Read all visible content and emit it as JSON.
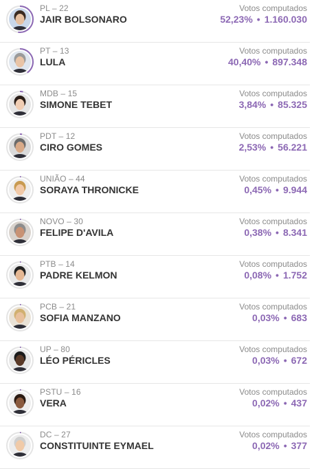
{
  "vote_label": "Votos computados",
  "separator": "•",
  "colors": {
    "accent": "#8c68b4",
    "progress_ring": "#8c68b4",
    "ring_track": "#e4e4e4"
  },
  "candidates": [
    {
      "party": "PL – 22",
      "name": "JAIR BOLSONARO",
      "percent": "52,23%",
      "votes": "1.160.030",
      "share": 0.5223,
      "avatar": "person-photo-icon"
    },
    {
      "party": "PT – 13",
      "name": "LULA",
      "percent": "40,40%",
      "votes": "897.348",
      "share": 0.404,
      "avatar": "person-photo-icon"
    },
    {
      "party": "MDB – 15",
      "name": "SIMONE TEBET",
      "percent": "3,84%",
      "votes": "85.325",
      "share": 0.0384,
      "avatar": "person-photo-icon"
    },
    {
      "party": "PDT – 12",
      "name": "CIRO GOMES",
      "percent": "2,53%",
      "votes": "56.221",
      "share": 0.0253,
      "avatar": "person-photo-icon"
    },
    {
      "party": "UNIÃO – 44",
      "name": "SORAYA THRONICKE",
      "percent": "0,45%",
      "votes": "9.944",
      "share": 0.0045,
      "avatar": "person-photo-icon"
    },
    {
      "party": "NOVO – 30",
      "name": "FELIPE D'AVILA",
      "percent": "0,38%",
      "votes": "8.341",
      "share": 0.0038,
      "avatar": "person-photo-icon"
    },
    {
      "party": "PTB – 14",
      "name": "PADRE KELMON",
      "percent": "0,08%",
      "votes": "1.752",
      "share": 0.0008,
      "avatar": "person-photo-icon"
    },
    {
      "party": "PCB – 21",
      "name": "SOFIA MANZANO",
      "percent": "0,03%",
      "votes": "683",
      "share": 0.0003,
      "avatar": "person-photo-icon"
    },
    {
      "party": "UP – 80",
      "name": "LÉO PÉRICLES",
      "percent": "0,03%",
      "votes": "672",
      "share": 0.0003,
      "avatar": "person-photo-icon"
    },
    {
      "party": "PSTU – 16",
      "name": "VERA",
      "percent": "0,02%",
      "votes": "437",
      "share": 0.0002,
      "avatar": "person-photo-icon"
    },
    {
      "party": "DC – 27",
      "name": "CONSTITUINTE EYMAEL",
      "percent": "0,02%",
      "votes": "377",
      "share": 0.0002,
      "avatar": "person-photo-icon"
    }
  ]
}
